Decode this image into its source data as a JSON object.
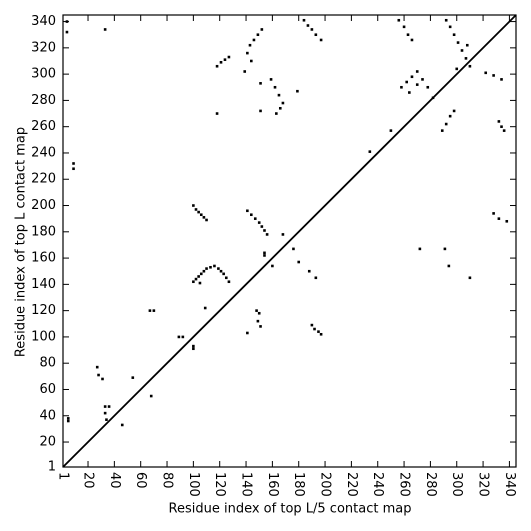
{
  "chart_data": {
    "type": "scatter",
    "xlabel": "Residue index of top L/5 contact map",
    "ylabel": "Residue index of top L contact map",
    "xlim": [
      1,
      345
    ],
    "ylim": [
      1,
      345
    ],
    "xticks": [
      1,
      20,
      40,
      60,
      80,
      100,
      120,
      140,
      160,
      180,
      200,
      220,
      240,
      260,
      280,
      300,
      320,
      340
    ],
    "yticks": [
      1,
      20,
      40,
      60,
      80,
      100,
      120,
      140,
      160,
      180,
      200,
      220,
      240,
      260,
      280,
      300,
      320,
      340
    ],
    "color": "#000000",
    "x": [
      5,
      5,
      33,
      36,
      33,
      34,
      46,
      27,
      28,
      31,
      54,
      68,
      67,
      70,
      89,
      92,
      100,
      100,
      100,
      102,
      104,
      106,
      108,
      110,
      100,
      102,
      104,
      106,
      108,
      110,
      113,
      116,
      119,
      121,
      123,
      125,
      127,
      105,
      109,
      141,
      148,
      150,
      149,
      151,
      141,
      144,
      147,
      150,
      152,
      154,
      156,
      154,
      154,
      160,
      168,
      176,
      180,
      188,
      193,
      190,
      192,
      195,
      197,
      234,
      250,
      272,
      291,
      294,
      310,
      328,
      332,
      338,
      332,
      334,
      336,
      322,
      328,
      334,
      289,
      292,
      295,
      298,
      258,
      262,
      266,
      270,
      274,
      278,
      264,
      270,
      282,
      256,
      260,
      263,
      266,
      292,
      295,
      298,
      301,
      304,
      307,
      310,
      300,
      308,
      9,
      9,
      4,
      4,
      33,
      118,
      121,
      124,
      127,
      118,
      139,
      141,
      143,
      146,
      149,
      152,
      144,
      151,
      151,
      159,
      162,
      165,
      168,
      163,
      166,
      184,
      187,
      190,
      193,
      197,
      179
    ],
    "values": [
      38,
      36,
      47,
      47,
      42,
      37,
      33,
      77,
      71,
      68,
      69,
      55,
      120,
      120,
      100,
      100,
      91,
      93,
      200,
      197,
      195,
      193,
      191,
      189,
      142,
      144,
      146,
      148,
      150,
      152,
      153,
      154,
      152,
      150,
      148,
      145,
      142,
      141,
      122,
      103,
      120,
      118,
      112,
      108,
      196,
      193,
      190,
      187,
      184,
      181,
      178,
      162,
      164,
      154,
      178,
      167,
      157,
      150,
      145,
      109,
      106,
      104,
      102,
      241,
      257,
      167,
      167,
      154,
      145,
      194,
      190,
      188,
      264,
      260,
      257,
      301,
      299,
      296,
      257,
      262,
      268,
      272,
      290,
      294,
      298,
      302,
      296,
      290,
      286,
      292,
      282,
      341,
      336,
      330,
      326,
      341,
      336,
      330,
      324,
      318,
      312,
      306,
      304,
      322,
      232,
      228,
      332,
      340,
      334,
      306,
      309,
      311,
      313,
      270,
      302,
      316,
      322,
      326,
      330,
      334,
      310,
      293,
      272,
      296,
      290,
      284,
      278,
      270,
      274,
      341,
      337,
      334,
      330,
      326,
      287
    ]
  }
}
